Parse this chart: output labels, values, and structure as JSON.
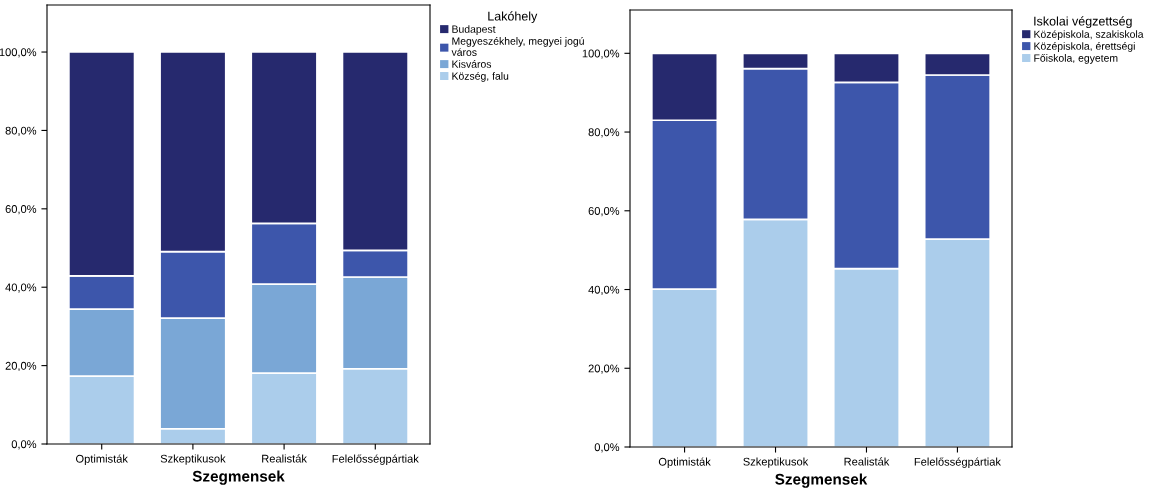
{
  "chart_data": [
    {
      "type": "bar",
      "stacked": true,
      "xlabel": "Szegmensek",
      "legend_title": "Lakóhely",
      "legend": "top right",
      "grid": false,
      "categories": [
        "Optimisták",
        "Szkeptikusok",
        "Realisták",
        "Felelősségpártiak"
      ],
      "ylim": [
        0,
        112
      ],
      "yticks": [
        {
          "value": 0,
          "label": "0,0%"
        },
        {
          "value": 20,
          "label": "20,0%"
        },
        {
          "value": 40,
          "label": "40,0%"
        },
        {
          "value": 60,
          "label": "60,0%"
        },
        {
          "value": 80,
          "label": "80,0%"
        },
        {
          "value": 100,
          "label": "100,0%"
        }
      ],
      "series": [
        {
          "name": "Község, falu",
          "color": "#abcdeb",
          "values": [
            17.3,
            3.9,
            18.1,
            19.2
          ]
        },
        {
          "name": "Kisváros",
          "color": "#7aa7d6",
          "values": [
            17.1,
            28.2,
            22.7,
            23.4
          ]
        },
        {
          "name": "Megyeszékhely, megyei jogú\nváros",
          "color": "#3d56ab",
          "values": [
            8.5,
            17.0,
            15.5,
            6.8
          ]
        },
        {
          "name": "Budapest",
          "color": "#26296e",
          "values": [
            57.1,
            50.9,
            43.7,
            50.6
          ]
        }
      ]
    },
    {
      "type": "bar",
      "stacked": true,
      "xlabel": "Szegmensek",
      "legend_title": "Iskolai végzettség",
      "legend": "top right",
      "grid": false,
      "categories": [
        "Optimisták",
        "Szkeptikusok",
        "Realisták",
        "Felelősségpártiak"
      ],
      "ylim": [
        0,
        111
      ],
      "yticks": [
        {
          "value": 0,
          "label": "0,0%"
        },
        {
          "value": 20,
          "label": "20,0%"
        },
        {
          "value": 40,
          "label": "40,0%"
        },
        {
          "value": 60,
          "label": "60,0%"
        },
        {
          "value": 80,
          "label": "80,0%"
        },
        {
          "value": 100,
          "label": "100,0%"
        }
      ],
      "series": [
        {
          "name": "Főiskola, egyetem",
          "color": "#abcdeb",
          "values": [
            40.1,
            57.8,
            45.3,
            52.8
          ]
        },
        {
          "name": "Középiskola, érettségi",
          "color": "#3d56ab",
          "values": [
            42.9,
            38.3,
            47.3,
            41.7
          ]
        },
        {
          "name": "Középiskola, szakiskola",
          "color": "#26296e",
          "values": [
            17.0,
            3.9,
            7.4,
            5.5
          ]
        }
      ]
    }
  ]
}
